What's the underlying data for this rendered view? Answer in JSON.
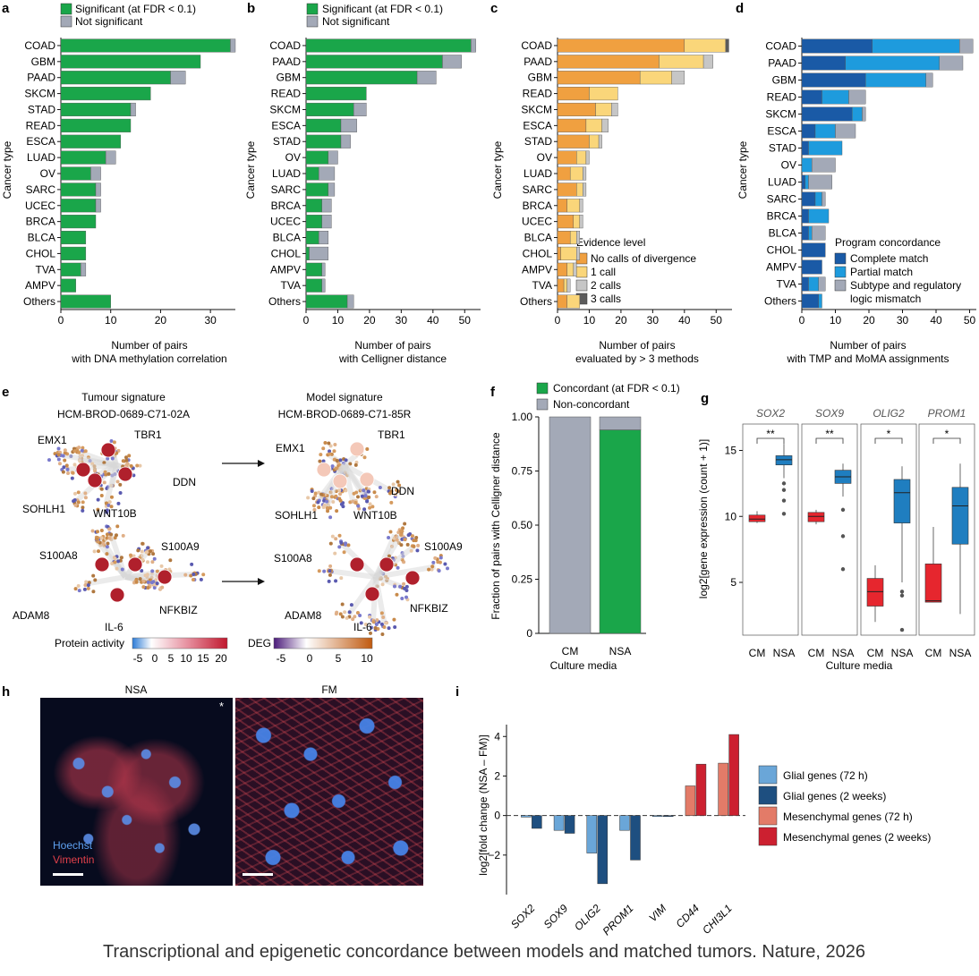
{
  "caption": "Transcriptional and epigenetic concordance between models and matched tumors. Nature, 2026",
  "colors": {
    "sig": "#1aa64a",
    "nonsig": "#a3a9b7",
    "ev0": "#f0a040",
    "ev1": "#fad67a",
    "ev2": "#c6c6c6",
    "ev3": "#5c5c5c",
    "complete": "#1a5aa6",
    "partial": "#1e9bdd",
    "mismatch": "#a3a9b7",
    "glial72": "#6aa6d8",
    "glial2w": "#1e4f80",
    "mes72": "#e37b68",
    "mes2w": "#cc2030",
    "cm": "#e6262e",
    "nsa": "#1f7ec0"
  },
  "panels": {
    "a": {
      "letter": "a",
      "legend": [
        "Significant (at FDR < 0.1)",
        "Not significant"
      ],
      "ylabel": "Cancer type",
      "xlabel": [
        "Number of pairs",
        "with DNA methylation correlation"
      ]
    },
    "b": {
      "letter": "b",
      "legend": [
        "Significant (at FDR < 0.1)",
        "Not significant"
      ],
      "ylabel": "Cancer type",
      "xlabel": [
        "Number of pairs",
        "with Celligner distance"
      ]
    },
    "c": {
      "letter": "c",
      "legend_title": "Evidence level",
      "legend": [
        "No calls of divergence",
        "1 call",
        "2 calls",
        "3 calls"
      ],
      "ylabel": "Cancer type",
      "xlabel": [
        "Number of pairs",
        "evaluated by > 3 methods"
      ]
    },
    "d": {
      "letter": "d",
      "legend_title": "Program concordance",
      "legend": [
        "Complete match",
        "Partial match",
        "Subtype and regulatory",
        "logic mismatch"
      ],
      "ylabel": "Cancer type",
      "xlabel": [
        "Number of pairs",
        "with TMP and MoMA assignments"
      ]
    },
    "e": {
      "letter": "e",
      "tumour_title": "Tumour signature",
      "tumour_id": "HCM-BROD-0689-C71-02A",
      "model_title": "Model signature",
      "model_id": "HCM-BROD-0689-C71-85R",
      "top_genes": [
        "EMX1",
        "TBR1",
        "DDN",
        "SOHLH1",
        "WNT10B"
      ],
      "bottom_genes": [
        "S100A8",
        "S100A9",
        "NFKBIZ",
        "ADAM8",
        "IL-6"
      ],
      "protein_label": "Protein activity",
      "protein_ticks": [
        "-5",
        "0",
        "5",
        "10",
        "15",
        "20"
      ],
      "deg_label": "DEG",
      "deg_ticks": [
        "-5",
        "0",
        "5",
        "10"
      ]
    },
    "f": {
      "letter": "f",
      "legend": [
        "Concordant (at FDR < 0.1)",
        "Non-concordant"
      ],
      "ylabel": "Fraction of pairs with Celligner distance",
      "xlabel": "Culture media"
    },
    "g": {
      "letter": "g",
      "genes": [
        "SOX2",
        "SOX9",
        "OLIG2",
        "PROM1"
      ],
      "stars": [
        "**",
        "**",
        "*",
        "*"
      ],
      "ylabel": "log2[gene expression (count + 1)]",
      "xlabel": "Culture media",
      "groups": [
        "CM",
        "NSA"
      ]
    },
    "h": {
      "letter": "h",
      "nsa_title": "NSA",
      "fm_title": "FM",
      "stain1": "Hoechst",
      "stain2": "Vimentin",
      "asterisk": "*"
    },
    "i": {
      "letter": "i",
      "ylabel": "log2[fold change (NSA – FM)]",
      "legend": [
        "Glial genes (72 h)",
        "Glial genes (2 weeks)",
        "Mesenchymal genes (72 h)",
        "Mesenchymal genes (2 weeks)"
      ]
    }
  },
  "chart_data": [
    {
      "panel": "a",
      "type": "bar",
      "orientation": "horizontal",
      "stacked": true,
      "categories": [
        "COAD",
        "GBM",
        "PAAD",
        "SKCM",
        "STAD",
        "READ",
        "ESCA",
        "LUAD",
        "OV",
        "SARC",
        "UCEC",
        "BRCA",
        "BLCA",
        "CHOL",
        "TVA",
        "AMPV",
        "Others"
      ],
      "series": [
        {
          "name": "Significant (at FDR < 0.1)",
          "values": [
            34,
            28,
            22,
            18,
            14,
            14,
            12,
            9,
            6,
            7,
            7,
            7,
            5,
            5,
            4,
            3,
            10
          ]
        },
        {
          "name": "Not significant",
          "values": [
            1,
            0,
            3,
            0,
            1,
            0,
            0,
            2,
            2,
            1,
            1,
            0,
            0,
            0,
            1,
            0,
            0
          ]
        }
      ],
      "xlim": [
        0,
        35
      ],
      "xticks": [
        0,
        10,
        20,
        30
      ]
    },
    {
      "panel": "b",
      "type": "bar",
      "orientation": "horizontal",
      "stacked": true,
      "categories": [
        "COAD",
        "PAAD",
        "GBM",
        "READ",
        "SKCM",
        "ESCA",
        "STAD",
        "OV",
        "LUAD",
        "SARC",
        "BRCA",
        "UCEC",
        "BLCA",
        "CHOL",
        "AMPV",
        "TVA",
        "Others"
      ],
      "series": [
        {
          "name": "Significant (at FDR < 0.1)",
          "values": [
            52,
            43,
            35,
            19,
            15,
            11,
            11,
            7,
            4,
            7,
            5,
            5,
            4,
            1,
            5,
            5,
            13
          ]
        },
        {
          "name": "Not significant",
          "values": [
            1.5,
            6,
            6,
            0,
            4,
            5,
            3,
            3,
            5,
            2,
            3,
            3,
            3,
            6,
            1,
            1,
            2
          ]
        }
      ],
      "xlim": [
        0,
        55
      ],
      "xticks": [
        0,
        10,
        20,
        30,
        40,
        50
      ]
    },
    {
      "panel": "c",
      "type": "bar",
      "orientation": "horizontal",
      "stacked": true,
      "categories": [
        "COAD",
        "PAAD",
        "GBM",
        "READ",
        "SKCM",
        "ESCA",
        "STAD",
        "OV",
        "LUAD",
        "SARC",
        "BRCA",
        "UCEC",
        "BLCA",
        "CHOL",
        "AMPV",
        "TVA",
        "Others"
      ],
      "series": [
        {
          "name": "No calls of divergence",
          "values": [
            40,
            32,
            26,
            10,
            12,
            9,
            10,
            6,
            4,
            6,
            3,
            5,
            4,
            1,
            3,
            2,
            3
          ]
        },
        {
          "name": "1 call",
          "values": [
            13,
            14,
            10,
            9,
            5,
            5,
            3,
            3,
            4,
            2,
            4,
            2,
            2,
            5,
            2,
            1,
            4
          ]
        },
        {
          "name": "2 calls",
          "values": [
            0,
            3,
            4,
            0,
            2,
            2,
            1,
            1,
            1,
            1,
            1,
            1,
            1,
            1,
            1,
            1,
            0
          ]
        },
        {
          "name": "3 calls",
          "values": [
            1,
            0,
            0,
            0,
            0,
            0,
            0,
            0,
            0,
            0,
            0,
            0,
            0,
            0,
            0,
            0,
            0
          ]
        }
      ],
      "xlim": [
        0,
        55
      ],
      "xticks": [
        0,
        10,
        20,
        30,
        40,
        50
      ]
    },
    {
      "panel": "d",
      "type": "bar",
      "orientation": "horizontal",
      "stacked": true,
      "categories": [
        "COAD",
        "PAAD",
        "GBM",
        "READ",
        "SKCM",
        "ESCA",
        "STAD",
        "OV",
        "LUAD",
        "SARC",
        "BRCA",
        "BLCA",
        "CHOL",
        "AMPV",
        "TVA",
        "Others"
      ],
      "series": [
        {
          "name": "Complete match",
          "values": [
            21,
            13,
            19,
            6,
            15,
            4,
            2,
            0,
            1,
            4,
            2,
            2,
            7,
            6,
            2,
            5
          ]
        },
        {
          "name": "Partial match",
          "values": [
            26,
            28,
            18,
            8,
            3,
            6,
            10,
            3,
            1,
            2,
            6,
            1,
            0,
            0,
            3,
            1
          ]
        },
        {
          "name": "Subtype and regulatory logic mismatch",
          "values": [
            4,
            7,
            2,
            5,
            1,
            6,
            0,
            7,
            7,
            1,
            0,
            4,
            0,
            0,
            2,
            0
          ]
        }
      ],
      "xlim": [
        0,
        52
      ],
      "xticks": [
        0,
        10,
        20,
        30,
        40,
        50
      ]
    },
    {
      "panel": "f",
      "type": "bar",
      "stacked": true,
      "categories": [
        "CM",
        "NSA"
      ],
      "series": [
        {
          "name": "Concordant (at FDR < 0.1)",
          "values": [
            0,
            0.94
          ]
        },
        {
          "name": "Non-concordant",
          "values": [
            1.0,
            0.06
          ]
        }
      ],
      "ylim": [
        0,
        1
      ],
      "yticks": [
        0,
        0.25,
        0.5,
        0.75,
        1.0
      ]
    },
    {
      "panel": "g",
      "type": "box",
      "ylim": [
        1,
        17
      ],
      "yticks": [
        5,
        10,
        15
      ],
      "groups": [
        {
          "gene": "SOX2",
          "CM": {
            "min": 9.5,
            "q1": 9.6,
            "med": 9.8,
            "q3": 10.1,
            "max": 10.4,
            "out": []
          },
          "NSA": {
            "min": 12.9,
            "q1": 13.9,
            "med": 14.3,
            "q3": 14.6,
            "max": 15.5,
            "out": [
              12.5,
              12.0,
              11.2,
              10.2
            ]
          }
        },
        {
          "gene": "SOX9",
          "CM": {
            "min": 9.4,
            "q1": 9.6,
            "med": 10.0,
            "q3": 10.3,
            "max": 10.5,
            "out": []
          },
          "NSA": {
            "min": 11.5,
            "q1": 12.5,
            "med": 13.0,
            "q3": 13.5,
            "max": 14.0,
            "out": [
              10.5,
              8.5,
              6.0
            ]
          }
        },
        {
          "gene": "OLIG2",
          "CM": {
            "min": 2.0,
            "q1": 3.2,
            "med": 4.3,
            "q3": 5.3,
            "max": 6.3,
            "out": []
          },
          "NSA": {
            "min": 5.0,
            "q1": 9.5,
            "med": 11.8,
            "q3": 12.8,
            "max": 13.8,
            "out": [
              4.3,
              4.0,
              1.4
            ]
          }
        },
        {
          "gene": "PROM1",
          "CM": {
            "min": 3.5,
            "q1": 3.5,
            "med": 3.6,
            "q3": 6.4,
            "max": 9.2,
            "out": []
          },
          "NSA": {
            "min": 2.6,
            "q1": 7.9,
            "med": 10.8,
            "q3": 12.2,
            "max": 14.0,
            "out": []
          }
        }
      ]
    },
    {
      "panel": "i",
      "type": "bar",
      "categories": [
        "SOX2",
        "SOX9",
        "OLIG2",
        "PROM1",
        "VIM",
        "CD44",
        "CHI3L1"
      ],
      "series": [
        {
          "name": "Glial genes (72 h)",
          "values": [
            -0.08,
            -0.75,
            -1.9,
            -0.75,
            -0.05,
            null,
            null
          ]
        },
        {
          "name": "Glial genes (2 weeks)",
          "values": [
            -0.65,
            -0.9,
            -3.45,
            -2.25,
            -0.05,
            null,
            null
          ]
        },
        {
          "name": "Mesenchymal genes (72 h)",
          "values": [
            null,
            null,
            null,
            null,
            null,
            1.5,
            2.65
          ]
        },
        {
          "name": "Mesenchymal genes (2 weeks)",
          "values": [
            null,
            null,
            null,
            null,
            null,
            2.6,
            4.1
          ]
        }
      ],
      "ylim": [
        -4,
        4.6
      ],
      "yticks": [
        -2,
        0,
        2,
        4
      ]
    }
  ]
}
